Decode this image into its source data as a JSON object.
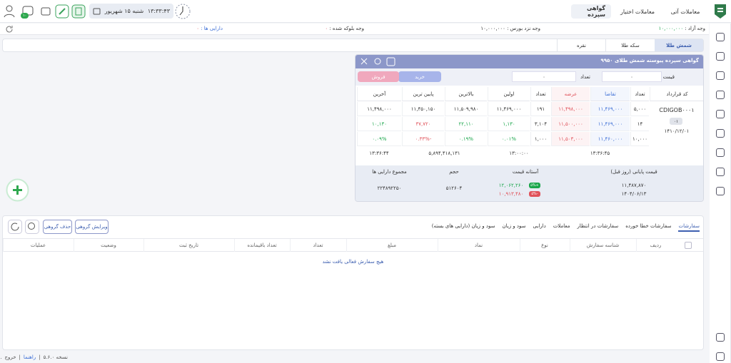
{
  "header": {
    "tabs": [
      "معاملات آتی",
      "معاملات اختیار",
      "گواهی سپرده"
    ],
    "date": "شنبه ۱۵ شهریور",
    "time": "۱۳:۳۳:۴۳",
    "badge": "۱۰"
  },
  "balances": [
    {
      "label": "وجه آزاد :",
      "value": "۱۰,۰۰۰,۰۰۰"
    },
    {
      "label": "وجه نزد بورس :",
      "value": "۱۰,۰۰۰,۰۰۰"
    },
    {
      "label": "وجه بلوکه شده :",
      "value": "۰"
    },
    {
      "label": "دارایی ها :",
      "value": "۰"
    }
  ],
  "asset_tabs": [
    "شمش طلا",
    "سکه طلا",
    "نقره"
  ],
  "panel": {
    "title": "گواهی سپرده پیوسته شمش طلای ۹۹۵۰",
    "price_label": "قیمت",
    "price": "۰",
    "qty_label": "تعداد",
    "qty": "۰",
    "buy": "خرید",
    "sell": "فروش",
    "columns": [
      "کد قرارداد",
      "تعداد",
      "تقاضا",
      "عرضه",
      "تعداد",
      "اولین",
      "بالاترین",
      "پایین ترین",
      "آخرین"
    ],
    "contract": {
      "code": "CDIGOB۰۰۰۱",
      "badge": "۰۱",
      "date": "۱۴۱۰/۱۲/۰۱"
    },
    "rows": [
      [
        "۵,۰۰۰",
        "۱۱,۴۶۹,۰۰۰",
        "۱۱,۴۹۸,۰۰۰",
        "۱۹۱",
        "۱۱,۴۶۹,۰۰۰",
        "۱۱,۵۰۹,۹۸۰",
        "۱۱,۴۵۰,۱۵۰",
        "۱۱,۴۹۸,۰۰۰"
      ],
      [
        "۱۴",
        "۱۱,۴۶۹,۰۰۰",
        "۱۱,۵۰۰,۰۰۰",
        "۳,۱۰۴",
        "۱,۱۳۰",
        "۲۲,۱۱۰",
        "۳۷,۷۲۰",
        "۱۰,۱۳۰"
      ],
      [
        "۱۰,۰۰۰",
        "۱۱,۴۶۰,۰۰۰",
        "۱۱,۵۰۳,۰۰۰",
        "۱,۰۰۰",
        "۰.۰۱%",
        "۰.۱۹%",
        "-۰.۳۳%",
        "۰.۰۹%"
      ]
    ],
    "times": [
      "۱۳:۳۶:۴۵",
      "۱۳:۰۰:۰۰",
      "۵,۸۹۴,۴۱۸,۱۳۱",
      "۱۳:۳۶:۴۴"
    ],
    "info": {
      "headers": [
        "قیمت پایانی (روز قبل)",
        "آستانه قیمت",
        "حجم",
        "مجموع دارایی ها"
      ],
      "close_price": "۱۱,۴۸۷,۸۷۰",
      "close_date": "۱۴۰۴/۰۶/۱۳",
      "upper": "۱۲,۰۶۲,۲۶۰",
      "upper_pct": "+۵%",
      "lower": "۱۰,۹۱۳,۴۸۰",
      "lower_pct": "-۵%",
      "volume": "۵۱۲۶۰۴",
      "total": "۲۲۴۸۹۲۲۵۰"
    }
  },
  "orders": {
    "tabs": [
      "سفارشات",
      "سفارشات خطا خورده",
      "سفارشات در انتظار",
      "معاملات",
      "دارایی",
      "سود و زیان",
      "سود و زیان (دارایی های بسته)"
    ],
    "buttons": [
      "ویرایش گروهی",
      "حذف گروهی"
    ],
    "columns": [
      "ردیف",
      "شناسه سفارش",
      "نوع",
      "نماد",
      "مبلغ",
      "تعداد",
      "تعداد باقیمانده",
      "تاریخ ثبت",
      "وضعیت",
      "عملیات"
    ],
    "empty": "هیچ سفارش فعالی یافت نشد"
  },
  "footer": {
    "version": "نسخه ۵.۶.۰",
    "help": "راهنما",
    "logout": "خروج",
    "more": "..."
  }
}
